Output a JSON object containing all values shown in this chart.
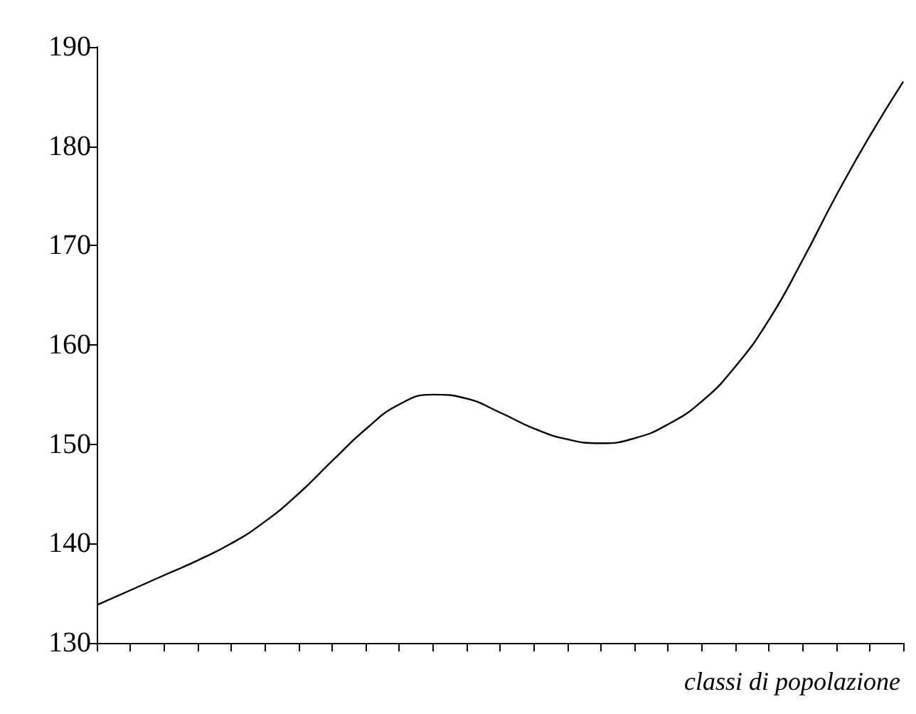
{
  "chart_data": {
    "type": "line",
    "xlabel": "classi di popolazione",
    "categories": [
      null,
      null,
      null,
      null,
      null,
      null,
      null,
      null,
      null,
      null,
      null,
      null,
      null,
      null,
      null,
      null,
      null,
      null,
      null,
      null,
      null,
      null,
      null,
      null,
      null
    ],
    "series": [
      {
        "color": "#000000",
        "values": [
          133.8,
          135.3,
          136.8,
          138.3,
          140.0,
          142.2,
          145.0,
          148.3,
          151.5,
          154.0,
          155.0,
          154.6,
          153.2,
          151.6,
          150.5,
          150.1,
          150.6,
          152.0,
          154.3,
          157.8,
          162.5,
          168.5,
          175.0,
          181.0,
          186.5
        ]
      }
    ],
    "ylim": [
      130,
      190
    ],
    "yticks": [
      130,
      140,
      150,
      160,
      170,
      180,
      190
    ],
    "grid": false,
    "marker": "none",
    "line_style": "solid",
    "tick_labels": "y"
  }
}
